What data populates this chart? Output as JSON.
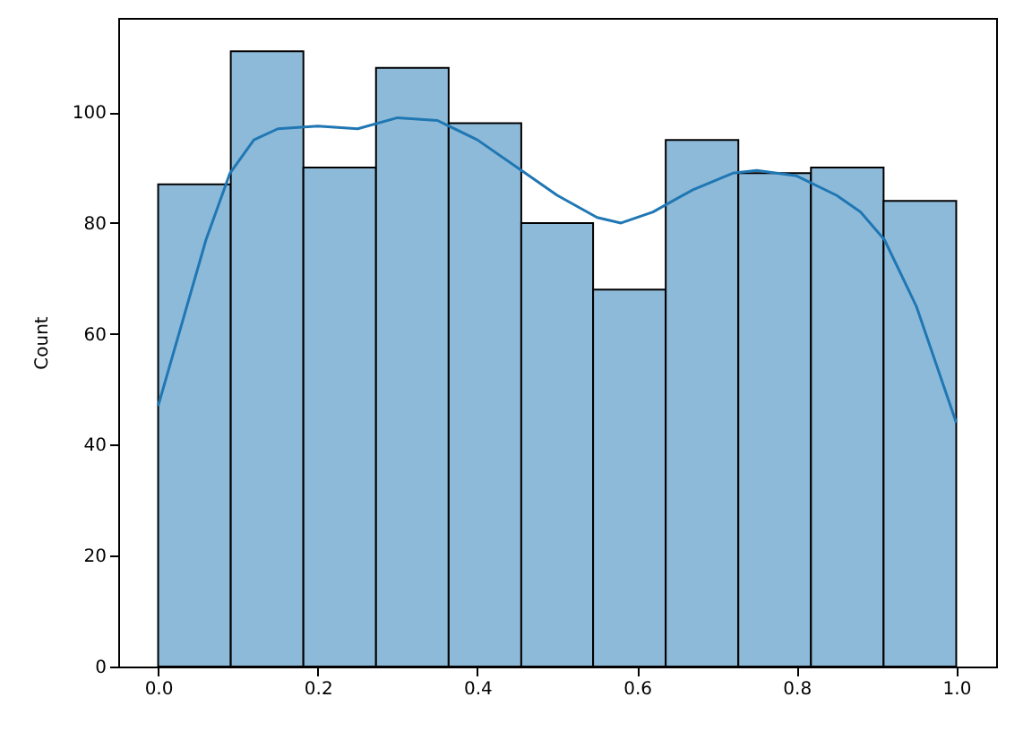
{
  "chart_data": {
    "type": "histogram",
    "ylabel": "Count",
    "bins": [
      0,
      0.091,
      0.182,
      0.273,
      0.364,
      0.455,
      0.545,
      0.636,
      0.727,
      0.818,
      0.909,
      1.0
    ],
    "series": [
      {
        "color": "#8ebad9",
        "values": [
          87,
          111,
          90,
          108,
          98,
          80,
          68,
          95,
          89,
          90,
          84
        ]
      },
      {
        "type": "line",
        "color": "#1f77b4",
        "x": [
          0,
          0.03,
          0.06,
          0.09,
          0.12,
          0.15,
          0.2,
          0.25,
          0.3,
          0.35,
          0.4,
          0.45,
          0.5,
          0.55,
          0.58,
          0.62,
          0.67,
          0.72,
          0.75,
          0.8,
          0.85,
          0.88,
          0.91,
          0.95,
          1.0
        ],
        "values": [
          47,
          62,
          77,
          89,
          95,
          97,
          97.5,
          97,
          99,
          98.5,
          95,
          90,
          85,
          81,
          80,
          82,
          86,
          89,
          89.5,
          88.5,
          85,
          82,
          77,
          65,
          44
        ]
      }
    ],
    "xlim": [
      -0.05,
      1.05
    ],
    "xticks": [
      {
        "value": 0,
        "label": "0.0"
      },
      0.2,
      0.4,
      0.6,
      0.8,
      {
        "value": 1,
        "label": "1.0"
      }
    ],
    "ylim": [
      0,
      117
    ],
    "yticks": [
      0,
      20,
      40,
      60,
      80,
      100
    ],
    "line_style": "solid"
  }
}
